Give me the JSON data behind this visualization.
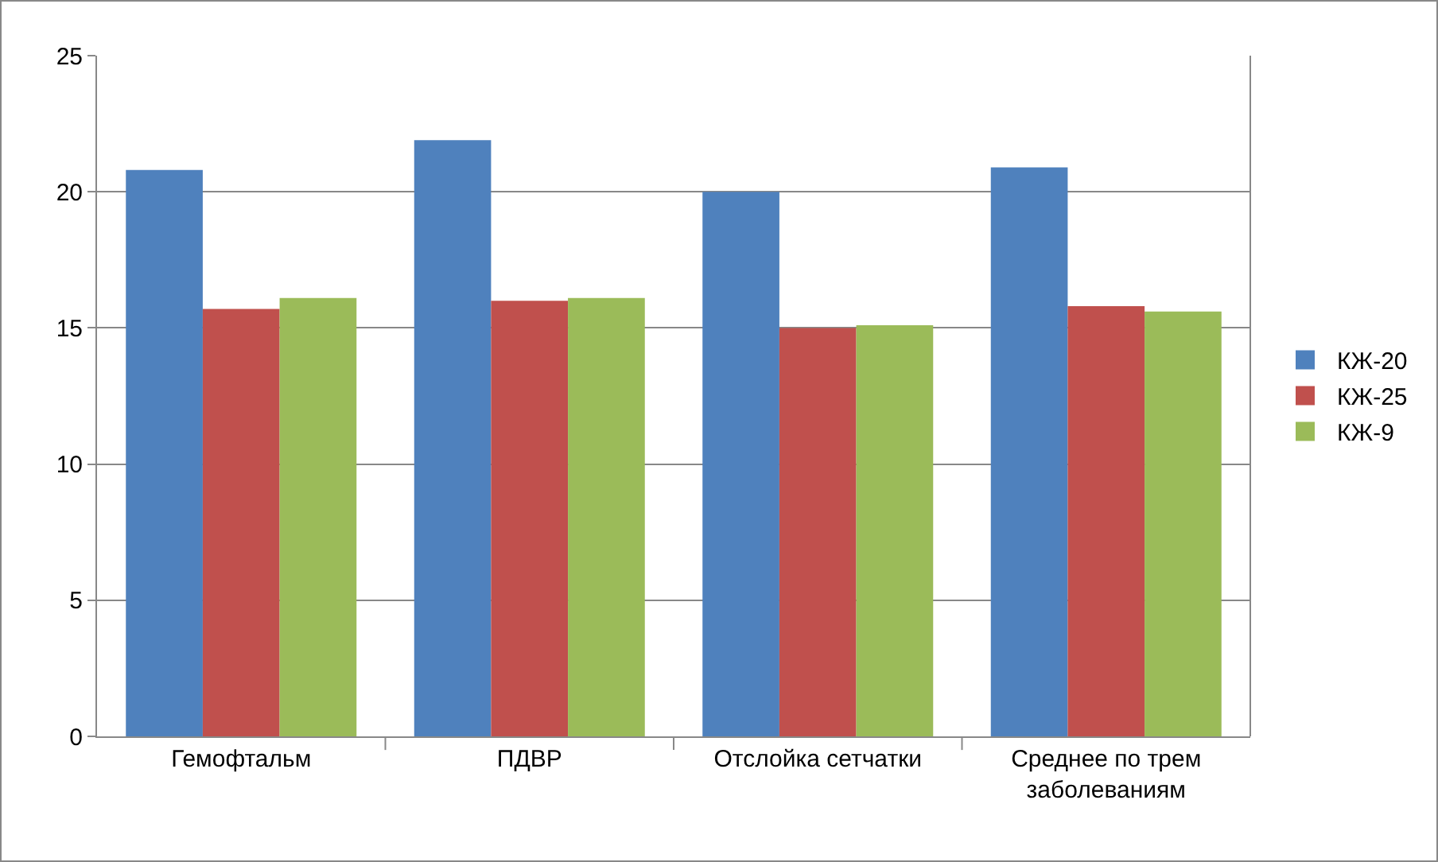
{
  "chart_data": {
    "type": "bar",
    "categories": [
      "Гемофтальм",
      "ПДВР",
      "Отслойка сетчатки",
      "Среднее по трем\nзаболеваниям"
    ],
    "series": [
      {
        "name": "КЖ-20",
        "color": "#4f81bd",
        "values": [
          20.8,
          21.9,
          20.0,
          20.9
        ]
      },
      {
        "name": "КЖ-25",
        "color": "#c0504d",
        "values": [
          15.7,
          16.0,
          15.0,
          15.8
        ]
      },
      {
        "name": "КЖ-9",
        "color": "#9bbb59",
        "values": [
          16.1,
          16.1,
          15.1,
          15.6
        ]
      }
    ],
    "ylim": [
      0,
      25
    ],
    "yticks": [
      0,
      5,
      10,
      15,
      20,
      25
    ],
    "grid": "y",
    "legend": "right"
  }
}
